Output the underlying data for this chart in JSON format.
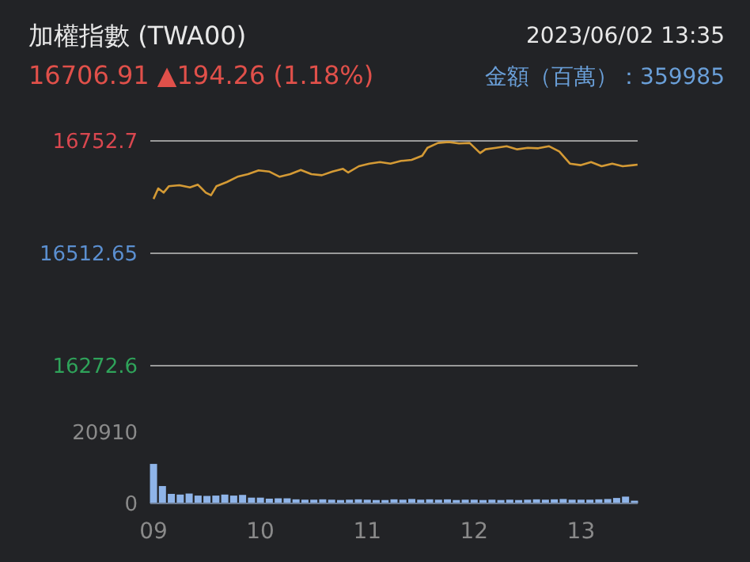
{
  "chart_data": [
    {
      "type": "line",
      "title": "加權指數 (TWA00)",
      "subtitle": "16706.91 ▲194.26 (1.18%)",
      "annotations": [
        "2023/06/02 13:35",
        "金額（百萬）：359985"
      ],
      "x": [
        9.0,
        9.044,
        9.094,
        9.143,
        9.242,
        9.341,
        9.415,
        9.489,
        9.538,
        9.588,
        9.686,
        9.785,
        9.884,
        9.983,
        10.081,
        10.18,
        10.279,
        10.378,
        10.477,
        10.575,
        10.674,
        10.773,
        10.822,
        10.921,
        11.019,
        11.119,
        11.217,
        11.316,
        11.415,
        11.514,
        11.563,
        11.662,
        11.76,
        11.859,
        11.958,
        12.056,
        12.106,
        12.205,
        12.304,
        12.403,
        12.501,
        12.6,
        12.699,
        12.797,
        12.896,
        12.995,
        13.094,
        13.193,
        13.292,
        13.39,
        13.489,
        13.529
      ],
      "series": [
        {
          "color": "#d49a35",
          "values": [
            16628.7,
            16651.3,
            16642.3,
            16655.8,
            16658.0,
            16653.5,
            16659.2,
            16642.3,
            16636.6,
            16655.8,
            16664.8,
            16676.1,
            16681.7,
            16689.6,
            16687.3,
            16676.1,
            16681.7,
            16690.7,
            16681.7,
            16679.4,
            16687.3,
            16693.0,
            16685.1,
            16698.6,
            16704.2,
            16707.6,
            16704.2,
            16709.9,
            16712.1,
            16721.1,
            16738.0,
            16748.2,
            16750.4,
            16747.1,
            16748.2,
            16726.8,
            16734.7,
            16738.0,
            16741.4,
            16734.7,
            16738.0,
            16736.9,
            16741.4,
            16730.2,
            16704.2,
            16700.9,
            16707.6,
            16698.6,
            16704.2,
            16698.6,
            16700.9,
            16702.0
          ]
        }
      ],
      "xlim": [
        8.97,
        13.53
      ],
      "ylim": [
        16272.6,
        16752.7
      ],
      "yticks": [
        16272.6,
        16512.65,
        16752.7
      ],
      "grid": "y",
      "tick_labels": "y"
    },
    {
      "type": "bar",
      "x": [
        9.0,
        9.0833,
        9.1667,
        9.25,
        9.3333,
        9.4167,
        9.5,
        9.5833,
        9.6667,
        9.75,
        9.8333,
        9.9167,
        10.0,
        10.0833,
        10.1667,
        10.25,
        10.3333,
        10.4167,
        10.5,
        10.5833,
        10.6667,
        10.75,
        10.8333,
        10.9167,
        11.0,
        11.0833,
        11.1667,
        11.25,
        11.3333,
        11.4167,
        11.5,
        11.5833,
        11.6667,
        11.75,
        11.8333,
        11.9167,
        12.0,
        12.0833,
        12.1667,
        12.25,
        12.3333,
        12.4167,
        12.5,
        12.5833,
        12.6667,
        12.75,
        12.8333,
        12.9167,
        13.0,
        13.0833,
        13.1667,
        13.25,
        13.3333,
        13.4167,
        13.5
      ],
      "series": [
        {
          "color": "#8fb4e8",
          "values": [
            11600,
            5100,
            2800,
            2600,
            2900,
            2300,
            2200,
            2300,
            2600,
            2300,
            2500,
            1700,
            1700,
            1400,
            1500,
            1500,
            1200,
            1100,
            1100,
            1200,
            1100,
            1000,
            1100,
            1200,
            1100,
            1000,
            1000,
            1200,
            1100,
            1300,
            1100,
            1200,
            1100,
            1200,
            1000,
            1100,
            1100,
            1000,
            1100,
            1000,
            1100,
            1000,
            1100,
            1200,
            1100,
            1200,
            1300,
            1100,
            1100,
            1100,
            1200,
            1300,
            1600,
            2000,
            800
          ]
        }
      ],
      "xlim": [
        8.97,
        13.53
      ],
      "ylim": [
        0,
        20910
      ],
      "yticks": [
        0,
        20910
      ],
      "xticks": [
        {
          "value": 9,
          "label": "09"
        },
        {
          "value": 10,
          "label": "10"
        },
        {
          "value": 11,
          "label": "11"
        },
        {
          "value": 12,
          "label": "12"
        },
        {
          "value": 13,
          "label": "13"
        }
      ],
      "grid": false
    }
  ]
}
